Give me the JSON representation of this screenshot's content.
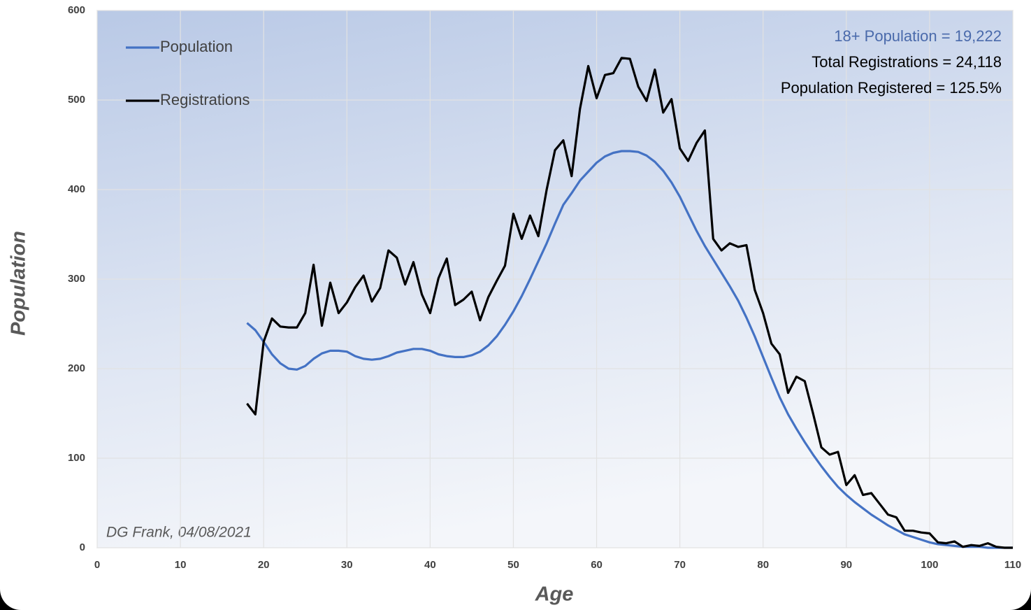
{
  "chart_data": {
    "type": "line",
    "xlabel": "Age",
    "ylabel": "Population",
    "annotations": [
      {
        "text": "18+ Population = 19,222",
        "color": "#4a6aab"
      },
      {
        "text": "Total Registrations = 24,118",
        "color": "#000000"
      },
      {
        "text": "Population Registered = 125.5%",
        "color": "#000000"
      }
    ],
    "credit": "DG Frank, 04/08/2021",
    "x": [
      18,
      19,
      20,
      21,
      22,
      23,
      24,
      25,
      26,
      27,
      28,
      29,
      30,
      31,
      32,
      33,
      34,
      35,
      36,
      37,
      38,
      39,
      40,
      41,
      42,
      43,
      44,
      45,
      46,
      47,
      48,
      49,
      50,
      51,
      52,
      53,
      54,
      55,
      56,
      57,
      58,
      59,
      60,
      61,
      62,
      63,
      64,
      65,
      66,
      67,
      68,
      69,
      70,
      71,
      72,
      73,
      74,
      75,
      76,
      77,
      78,
      79,
      80,
      81,
      82,
      83,
      84,
      85,
      86,
      87,
      88,
      89,
      90,
      91,
      92,
      93,
      94,
      95,
      96,
      97,
      98,
      99,
      100,
      101,
      102,
      103,
      104,
      105,
      106,
      107,
      108,
      109,
      110
    ],
    "series": [
      {
        "name": "Population",
        "color": "#4472c4",
        "values": [
          251,
          243,
          230,
          216,
          206,
          200,
          199,
          203,
          211,
          217,
          220,
          220,
          219,
          214,
          211,
          210,
          211,
          214,
          218,
          220,
          222,
          222,
          220,
          216,
          214,
          213,
          213,
          215,
          219,
          226,
          236,
          249,
          264,
          281,
          300,
          320,
          340,
          362,
          383,
          396,
          410,
          420,
          430,
          437,
          441,
          443,
          443,
          442,
          438,
          431,
          421,
          408,
          392,
          373,
          354,
          337,
          322,
          307,
          292,
          276,
          257,
          236,
          213,
          190,
          168,
          149,
          133,
          118,
          104,
          91,
          79,
          68,
          59,
          51,
          44,
          37,
          31,
          25,
          20,
          15,
          12,
          9,
          6,
          4,
          3,
          2,
          1,
          1,
          1,
          0,
          0,
          0,
          0
        ]
      },
      {
        "name": "Registrations",
        "color": "#000000",
        "values": [
          161,
          149,
          230,
          256,
          247,
          246,
          246,
          262,
          316,
          248,
          296,
          262,
          274,
          291,
          304,
          275,
          290,
          332,
          324,
          294,
          319,
          283,
          262,
          301,
          323,
          271,
          277,
          286,
          254,
          280,
          298,
          315,
          373,
          345,
          371,
          348,
          400,
          444,
          455,
          415,
          490,
          538,
          502,
          528,
          530,
          547,
          546,
          515,
          499,
          534,
          486,
          501,
          446,
          432,
          452,
          466,
          345,
          332,
          340,
          336,
          338,
          288,
          262,
          228,
          216,
          173,
          191,
          186,
          150,
          112,
          104,
          107,
          70,
          81,
          59,
          61,
          49,
          37,
          34,
          19,
          19,
          17,
          16,
          6,
          5,
          7,
          1,
          3,
          2,
          5,
          1,
          0,
          0
        ]
      }
    ],
    "xlim": [
      0,
      110
    ],
    "xticks": [
      0,
      10,
      20,
      30,
      40,
      50,
      60,
      70,
      80,
      90,
      100,
      110
    ],
    "ylim": [
      0,
      600
    ],
    "yticks": [
      0,
      100,
      200,
      300,
      400,
      500,
      600
    ],
    "grid": true,
    "legend": "upper left"
  }
}
